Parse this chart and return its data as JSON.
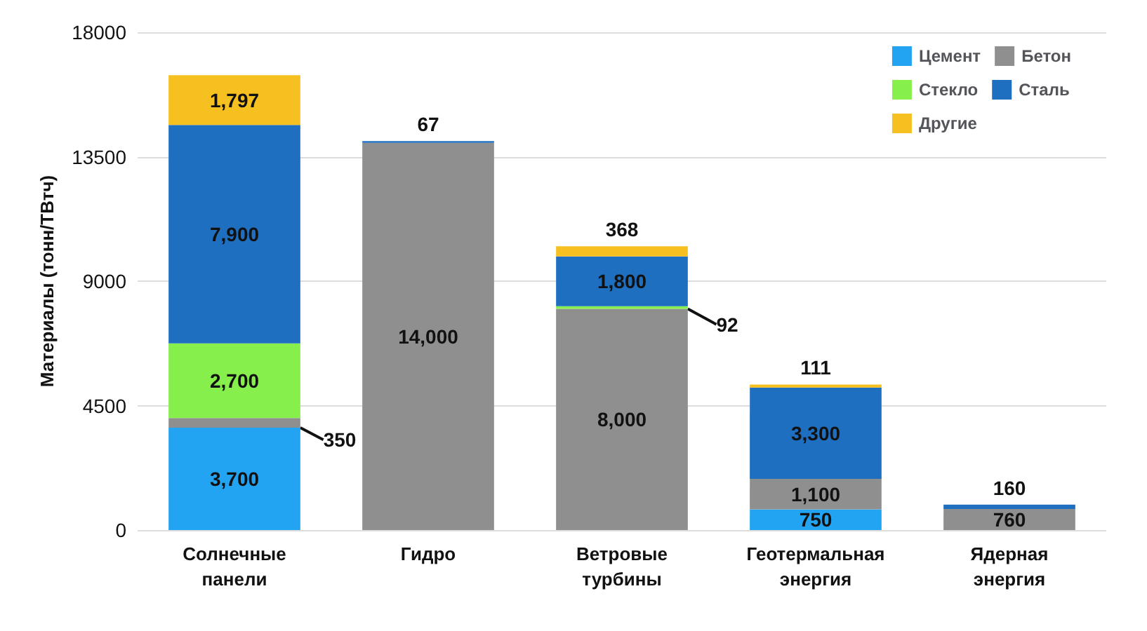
{
  "chart_data": {
    "type": "bar",
    "stacked": true,
    "ylabel": "Материалы (тонн/ТВтч)",
    "categories": [
      "Солнечные\nпанели",
      "Гидро",
      "Ветровые\nтурбины",
      "Геотермальная\nэнергия",
      "Ядерная\nэнергия"
    ],
    "series": [
      {
        "name": "Цемент",
        "color": "#23a4f2",
        "values": [
          3700,
          null,
          null,
          750,
          null
        ],
        "value_labels": [
          "3,700",
          null,
          null,
          "750",
          null
        ]
      },
      {
        "name": "Бетон",
        "color": "#8f8f8f",
        "values": [
          350,
          14000,
          8000,
          1100,
          760
        ],
        "value_labels": [
          "350",
          "14,000",
          "8,000",
          "1,100",
          "760"
        ]
      },
      {
        "name": "Стекло",
        "color": "#86ef4c",
        "values": [
          2700,
          null,
          92,
          null,
          null
        ],
        "value_labels": [
          "2,700",
          null,
          "92",
          null,
          null
        ]
      },
      {
        "name": "Сталь",
        "color": "#1f6fc1",
        "values": [
          7900,
          67,
          1800,
          3300,
          160
        ],
        "value_labels": [
          "7,900",
          "67",
          "1,800",
          "3,300",
          "160"
        ]
      },
      {
        "name": "Другие",
        "color": "#f6c020",
        "values": [
          1797,
          null,
          368,
          111,
          null
        ],
        "value_labels": [
          "1,797",
          null,
          "368",
          "111",
          null
        ]
      }
    ],
    "ylim": [
      0,
      18000
    ],
    "yticks": [
      0,
      4500,
      9000,
      13500,
      18000
    ],
    "grid": "y",
    "legend": "top right"
  }
}
